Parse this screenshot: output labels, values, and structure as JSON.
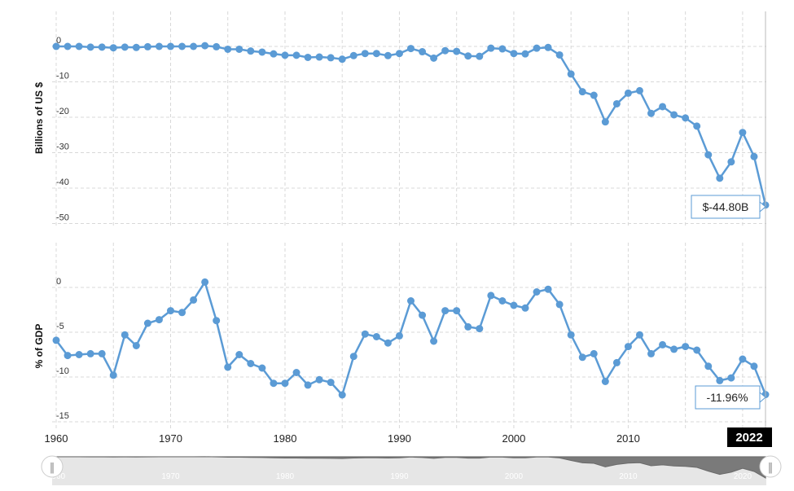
{
  "colors": {
    "series": "#5b9bd5",
    "grid": "#d8d8d8",
    "navigator_fill": "#7a7a7a",
    "navigator_bg": "#e6e6e6",
    "badge": "#000000"
  },
  "chart_data": [
    {
      "type": "line",
      "ylabel": "Billions of US $",
      "ylim": [
        -50,
        5
      ],
      "yticks": [
        0,
        -10,
        -20,
        -30,
        -40,
        -50
      ],
      "xlim": [
        1960,
        2022
      ],
      "xticks": [
        1960,
        1970,
        1980,
        1990,
        2000,
        2010
      ],
      "grid": true,
      "series": [
        {
          "x": [
            1960,
            1961,
            1962,
            1963,
            1964,
            1965,
            1966,
            1967,
            1968,
            1969,
            1970,
            1971,
            1972,
            1973,
            1974,
            1975,
            1976,
            1977,
            1978,
            1979,
            1980,
            1981,
            1982,
            1983,
            1984,
            1985,
            1986,
            1987,
            1988,
            1989,
            1990,
            1991,
            1992,
            1993,
            1994,
            1995,
            1996,
            1997,
            1998,
            1999,
            2000,
            2001,
            2002,
            2003,
            2004,
            2005,
            2006,
            2007,
            2008,
            2009,
            2010,
            2011,
            2012,
            2013,
            2014,
            2015,
            2016,
            2017,
            2018,
            2019,
            2020,
            2021,
            2022
          ],
          "values": [
            0.0,
            0.0,
            0.0,
            -0.2,
            -0.2,
            -0.4,
            -0.2,
            -0.3,
            -0.1,
            0.0,
            0.0,
            0.0,
            0.0,
            0.2,
            -0.1,
            -0.8,
            -0.8,
            -1.3,
            -1.6,
            -2.1,
            -2.5,
            -2.5,
            -3.1,
            -3.0,
            -3.2,
            -3.6,
            -2.6,
            -2.0,
            -2.0,
            -2.6,
            -2.0,
            -0.6,
            -1.5,
            -3.3,
            -1.2,
            -1.4,
            -2.7,
            -2.8,
            -0.5,
            -0.7,
            -2.0,
            -2.1,
            -0.5,
            -0.3,
            -2.4,
            -7.8,
            -12.8,
            -13.8,
            -21.3,
            -16.2,
            -13.2,
            -12.5,
            -18.9,
            -17.0,
            -19.3,
            -20.2,
            -22.5,
            -30.6,
            -37.2,
            -32.6,
            -24.3,
            -31.1,
            -44.8
          ]
        }
      ],
      "tooltip": "$-44.80B"
    },
    {
      "type": "line",
      "ylabel": "% of GDP",
      "ylim": [
        -15,
        3
      ],
      "yticks": [
        0,
        -5,
        -10,
        -15
      ],
      "xlim": [
        1960,
        2022
      ],
      "grid": true,
      "series": [
        {
          "x": [
            1960,
            1961,
            1962,
            1963,
            1964,
            1965,
            1966,
            1967,
            1968,
            1969,
            1970,
            1971,
            1972,
            1973,
            1974,
            1975,
            1976,
            1977,
            1978,
            1979,
            1980,
            1981,
            1982,
            1983,
            1984,
            1985,
            1986,
            1987,
            1988,
            1989,
            1990,
            1991,
            1992,
            1993,
            1994,
            1995,
            1996,
            1997,
            1998,
            1999,
            2000,
            2001,
            2002,
            2003,
            2004,
            2005,
            2006,
            2007,
            2008,
            2009,
            2010,
            2011,
            2012,
            2013,
            2014,
            2015,
            2016,
            2017,
            2018,
            2019,
            2020,
            2021,
            2022
          ],
          "values": [
            -5.9,
            -7.6,
            -7.5,
            -7.4,
            -7.4,
            -9.8,
            -5.3,
            -6.5,
            -4.0,
            -3.6,
            -2.6,
            -2.8,
            -1.4,
            0.6,
            -3.7,
            -8.9,
            -7.5,
            -8.5,
            -9.0,
            -10.7,
            -10.7,
            -9.5,
            -10.9,
            -10.3,
            -10.6,
            -12.0,
            -7.7,
            -5.2,
            -5.5,
            -6.2,
            -5.4,
            -1.5,
            -3.1,
            -6.0,
            -2.6,
            -2.6,
            -4.4,
            -4.6,
            -0.9,
            -1.5,
            -2.0,
            -2.3,
            -0.5,
            -0.2,
            -1.9,
            -5.3,
            -7.8,
            -7.4,
            -10.5,
            -8.4,
            -6.6,
            -5.3,
            -7.4,
            -6.4,
            -6.9,
            -6.6,
            -7.0,
            -8.8,
            -10.4,
            -10.1,
            -8.0,
            -8.8,
            -11.96
          ]
        }
      ],
      "tooltip": "-11.96%"
    }
  ],
  "navigator": {
    "ticks": [
      "1960",
      "1970",
      "1980",
      "1990",
      "2000",
      "2010",
      "2020"
    ],
    "handle_left": "‖",
    "handle_right": "‖"
  },
  "year_badge": "2022"
}
